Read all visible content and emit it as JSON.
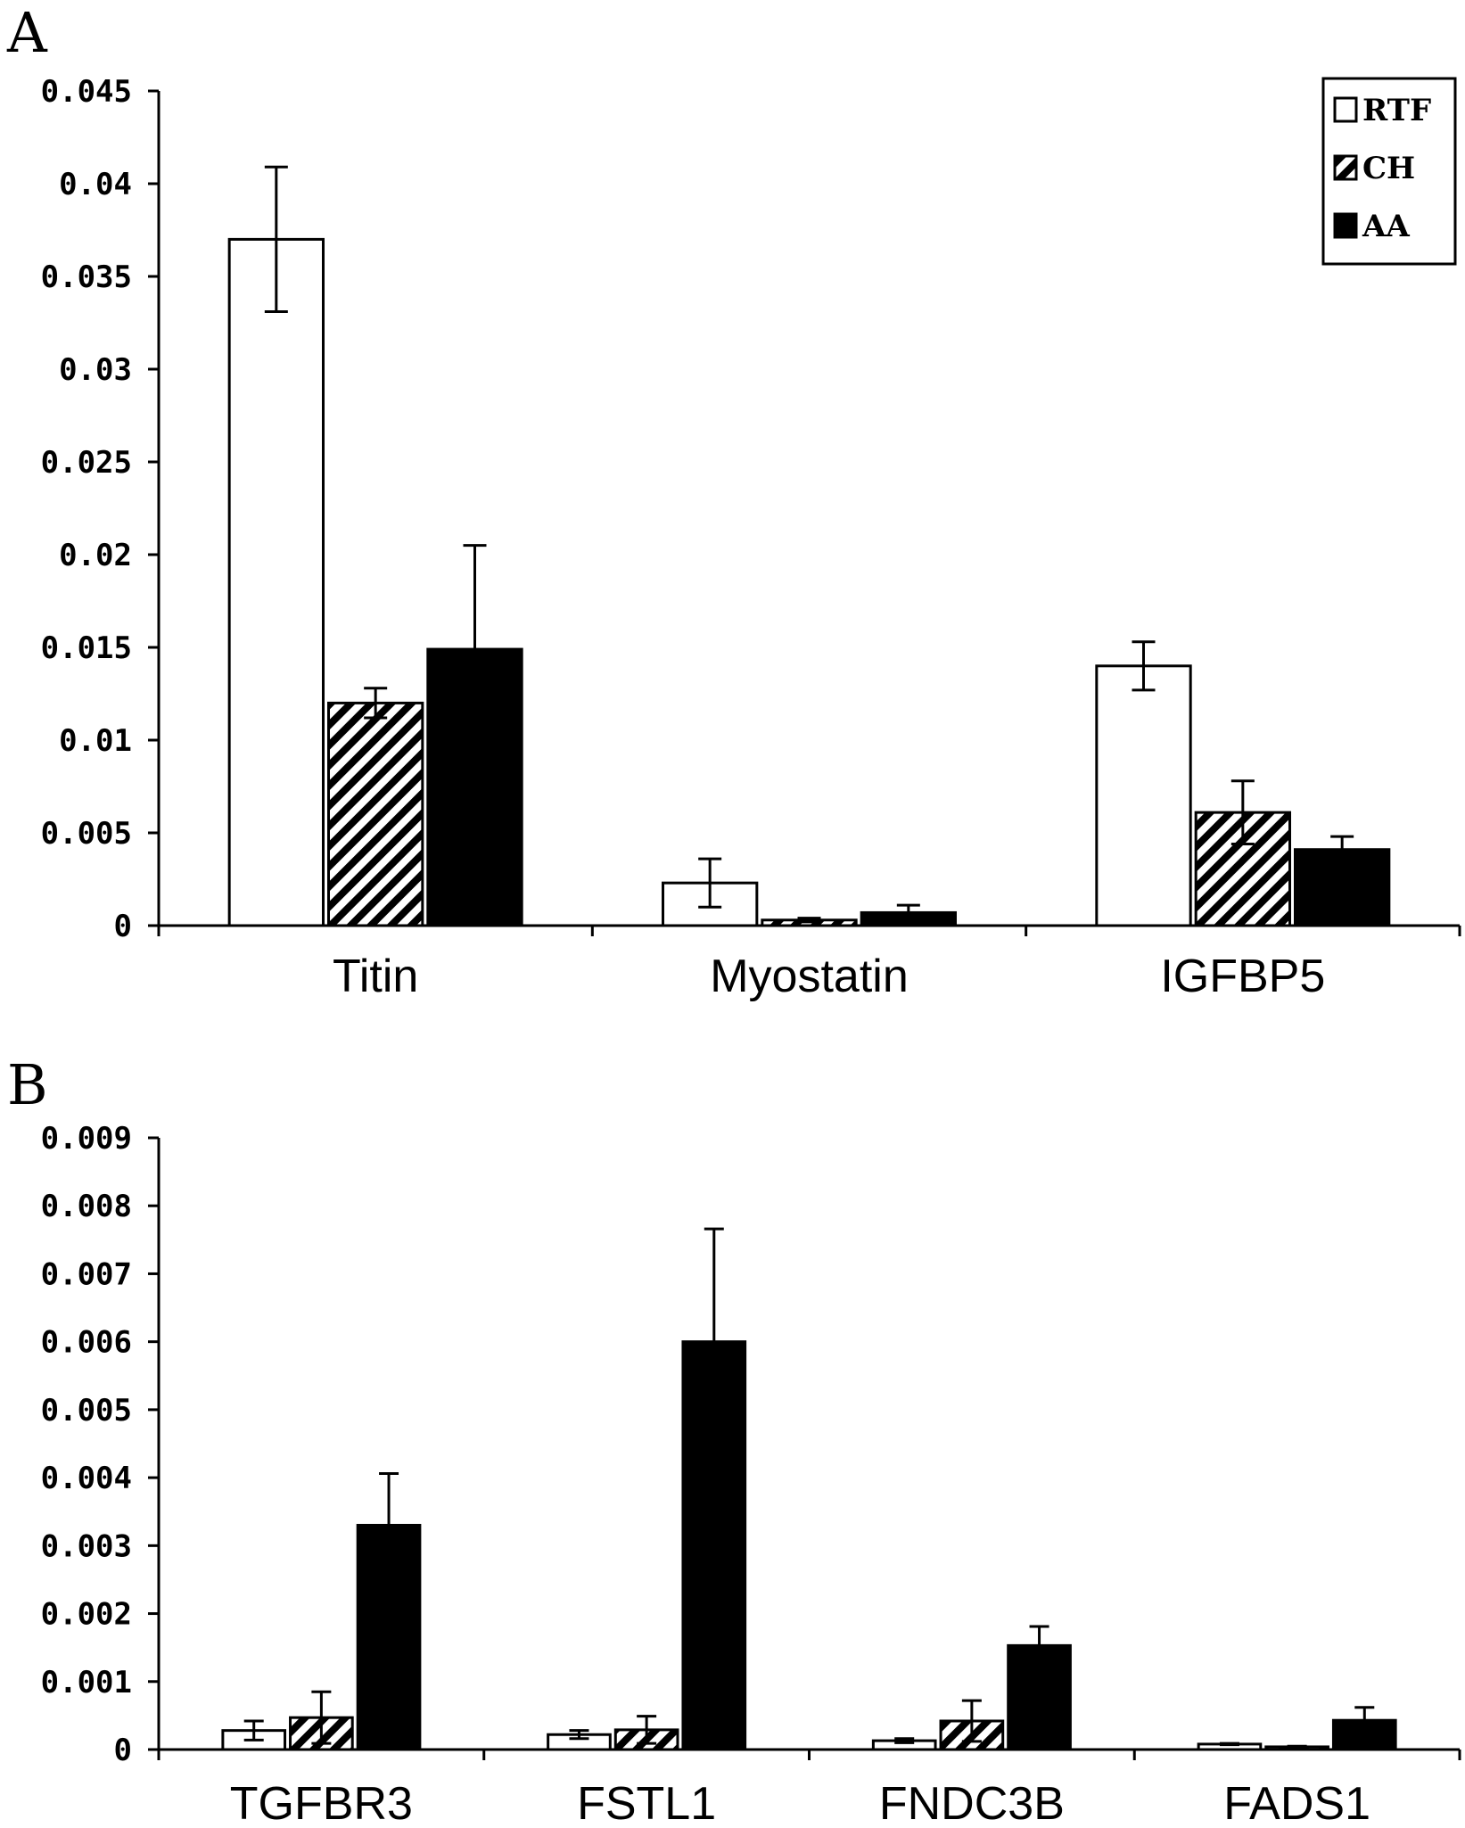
{
  "legend": {
    "entries": [
      {
        "name": "RTF",
        "pattern": "open"
      },
      {
        "name": "CH",
        "pattern": "hatch"
      },
      {
        "name": "AA",
        "pattern": "solid"
      }
    ]
  },
  "chart_data": [
    {
      "panel": "A",
      "type": "bar",
      "categories": [
        "Titin",
        "Myostatin",
        "IGFBP5"
      ],
      "series": [
        {
          "name": "RTF",
          "values": [
            0.037,
            0.0023,
            0.014
          ],
          "errors": [
            0.0039,
            0.0013,
            0.0013
          ]
        },
        {
          "name": "CH",
          "values": [
            0.012,
            0.0003,
            0.0061
          ],
          "errors": [
            0.0008,
            0.0001,
            0.0017
          ]
        },
        {
          "name": "AA",
          "values": [
            0.0149,
            0.0007,
            0.0041
          ],
          "errors": [
            0.0056,
            0.0004,
            0.0007
          ]
        }
      ],
      "ylim": [
        0,
        0.045
      ],
      "yticks": [
        "0",
        "0.005",
        "0.01",
        "0.015",
        "0.02",
        "0.025",
        "0.03",
        "0.035",
        "0.04",
        "0.045"
      ],
      "ytick_values": [
        0,
        0.005,
        0.01,
        0.015,
        0.02,
        0.025,
        0.03,
        0.035,
        0.04,
        0.045
      ],
      "legend_position": "top-right",
      "grid": false
    },
    {
      "panel": "B",
      "type": "bar",
      "categories": [
        "TGFBR3",
        "FSTL1",
        "FNDC3B",
        "FADS1"
      ],
      "series": [
        {
          "name": "RTF",
          "values": [
            0.00028,
            0.00022,
            0.00013,
            8e-05
          ],
          "errors": [
            0.00014,
            6e-05,
            3e-05,
            1e-05
          ]
        },
        {
          "name": "CH",
          "values": [
            0.00047,
            0.00029,
            0.00042,
            4e-05
          ],
          "errors": [
            0.00038,
            0.0002,
            0.0003,
            1e-05
          ]
        },
        {
          "name": "AA",
          "values": [
            0.0033,
            0.006,
            0.00153,
            0.00043
          ],
          "errors": [
            0.00076,
            0.00166,
            0.00028,
            0.00019
          ]
        }
      ],
      "ylim": [
        0,
        0.009
      ],
      "yticks": [
        "0",
        "0.001",
        "0.002",
        "0.003",
        "0.004",
        "0.005",
        "0.006",
        "0.007",
        "0.008",
        "0.009"
      ],
      "ytick_values": [
        0,
        0.001,
        0.002,
        0.003,
        0.004,
        0.005,
        0.006,
        0.007,
        0.008,
        0.009
      ],
      "grid": false
    }
  ]
}
